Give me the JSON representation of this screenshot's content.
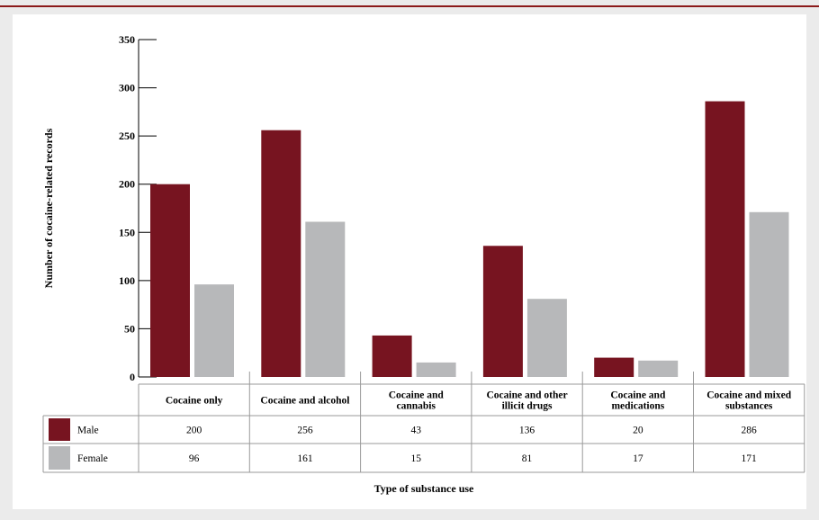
{
  "chart_data": {
    "type": "bar",
    "ylabel": "Number of cocaine-related records",
    "xlabel": "Type of substance use",
    "ylim": [
      0,
      350
    ],
    "yticks": [
      0,
      50,
      100,
      150,
      200,
      250,
      300,
      350
    ],
    "categories": [
      [
        "Cocaine only"
      ],
      [
        "Cocaine and alcohol"
      ],
      [
        "Cocaine and",
        "cannabis"
      ],
      [
        "Cocaine and other",
        "illicit drugs"
      ],
      [
        "Cocaine and",
        "medications"
      ],
      [
        "Cocaine and mixed",
        "substances"
      ]
    ],
    "series": [
      {
        "name": "Male",
        "color": "#771420",
        "values": [
          200,
          256,
          43,
          136,
          20,
          286
        ]
      },
      {
        "name": "Female",
        "color": "#b7b8ba",
        "values": [
          96,
          161,
          15,
          81,
          17,
          171
        ]
      }
    ],
    "grid": false,
    "legend": "data-table"
  }
}
